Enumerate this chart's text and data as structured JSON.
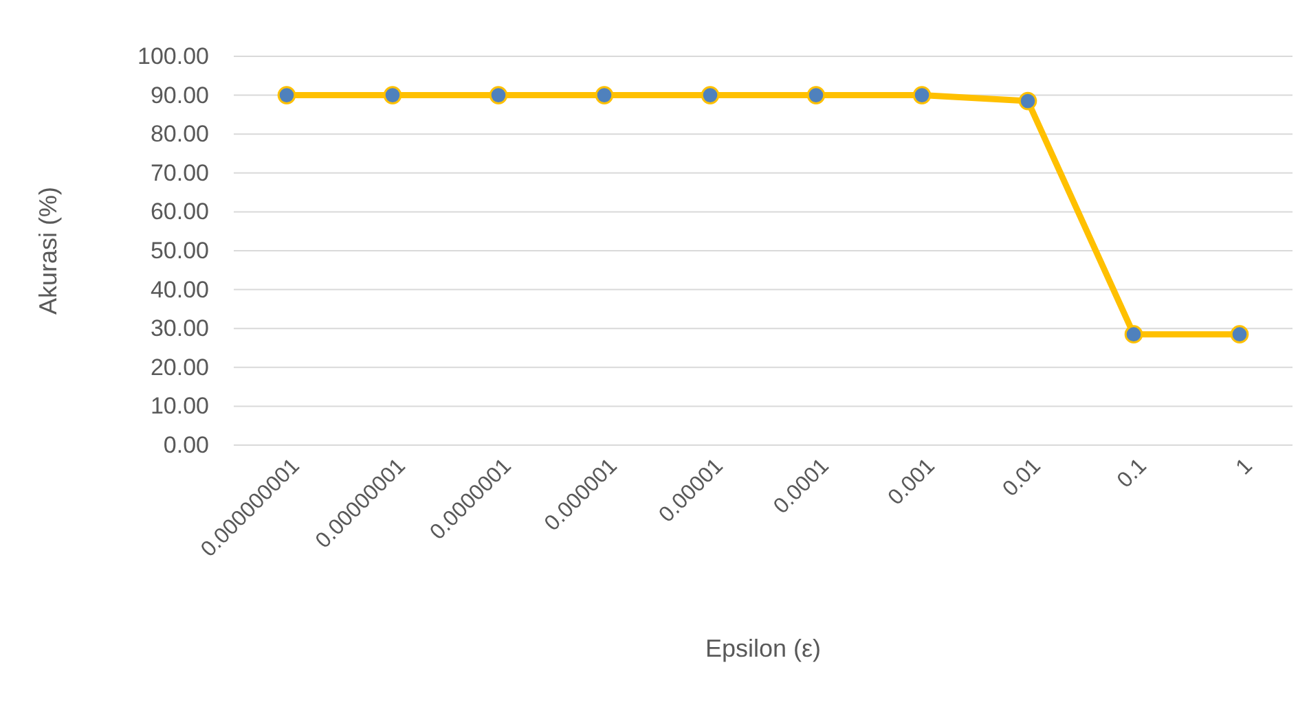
{
  "chart_data": {
    "type": "line",
    "xlabel": "Epsilon (ε)",
    "ylabel": "Akurasi (%)",
    "categories": [
      "0.000000001",
      "0.00000001",
      "0.0000001",
      "0.000001",
      "0.00001",
      "0.0001",
      "0.001",
      "0.01",
      "0.1",
      "1"
    ],
    "series": [
      {
        "color": "#ffc000",
        "values": [
          90,
          90,
          90,
          90,
          90,
          90,
          90,
          88.5,
          28.5,
          28.5
        ]
      }
    ],
    "ylim": [
      0,
      100
    ],
    "yticks": [
      {
        "value": 0,
        "label": "0.00"
      },
      {
        "value": 10,
        "label": "10.00"
      },
      {
        "value": 20,
        "label": "20.00"
      },
      {
        "value": 30,
        "label": "30.00"
      },
      {
        "value": 40,
        "label": "40.00"
      },
      {
        "value": 50,
        "label": "50.00"
      },
      {
        "value": 60,
        "label": "60.00"
      },
      {
        "value": 70,
        "label": "70.00"
      },
      {
        "value": 80,
        "label": "80.00"
      },
      {
        "value": 90,
        "label": "90.00"
      },
      {
        "value": 100,
        "label": "100.00"
      }
    ],
    "grid": "y",
    "marker": "circle",
    "line_style": "solid"
  }
}
